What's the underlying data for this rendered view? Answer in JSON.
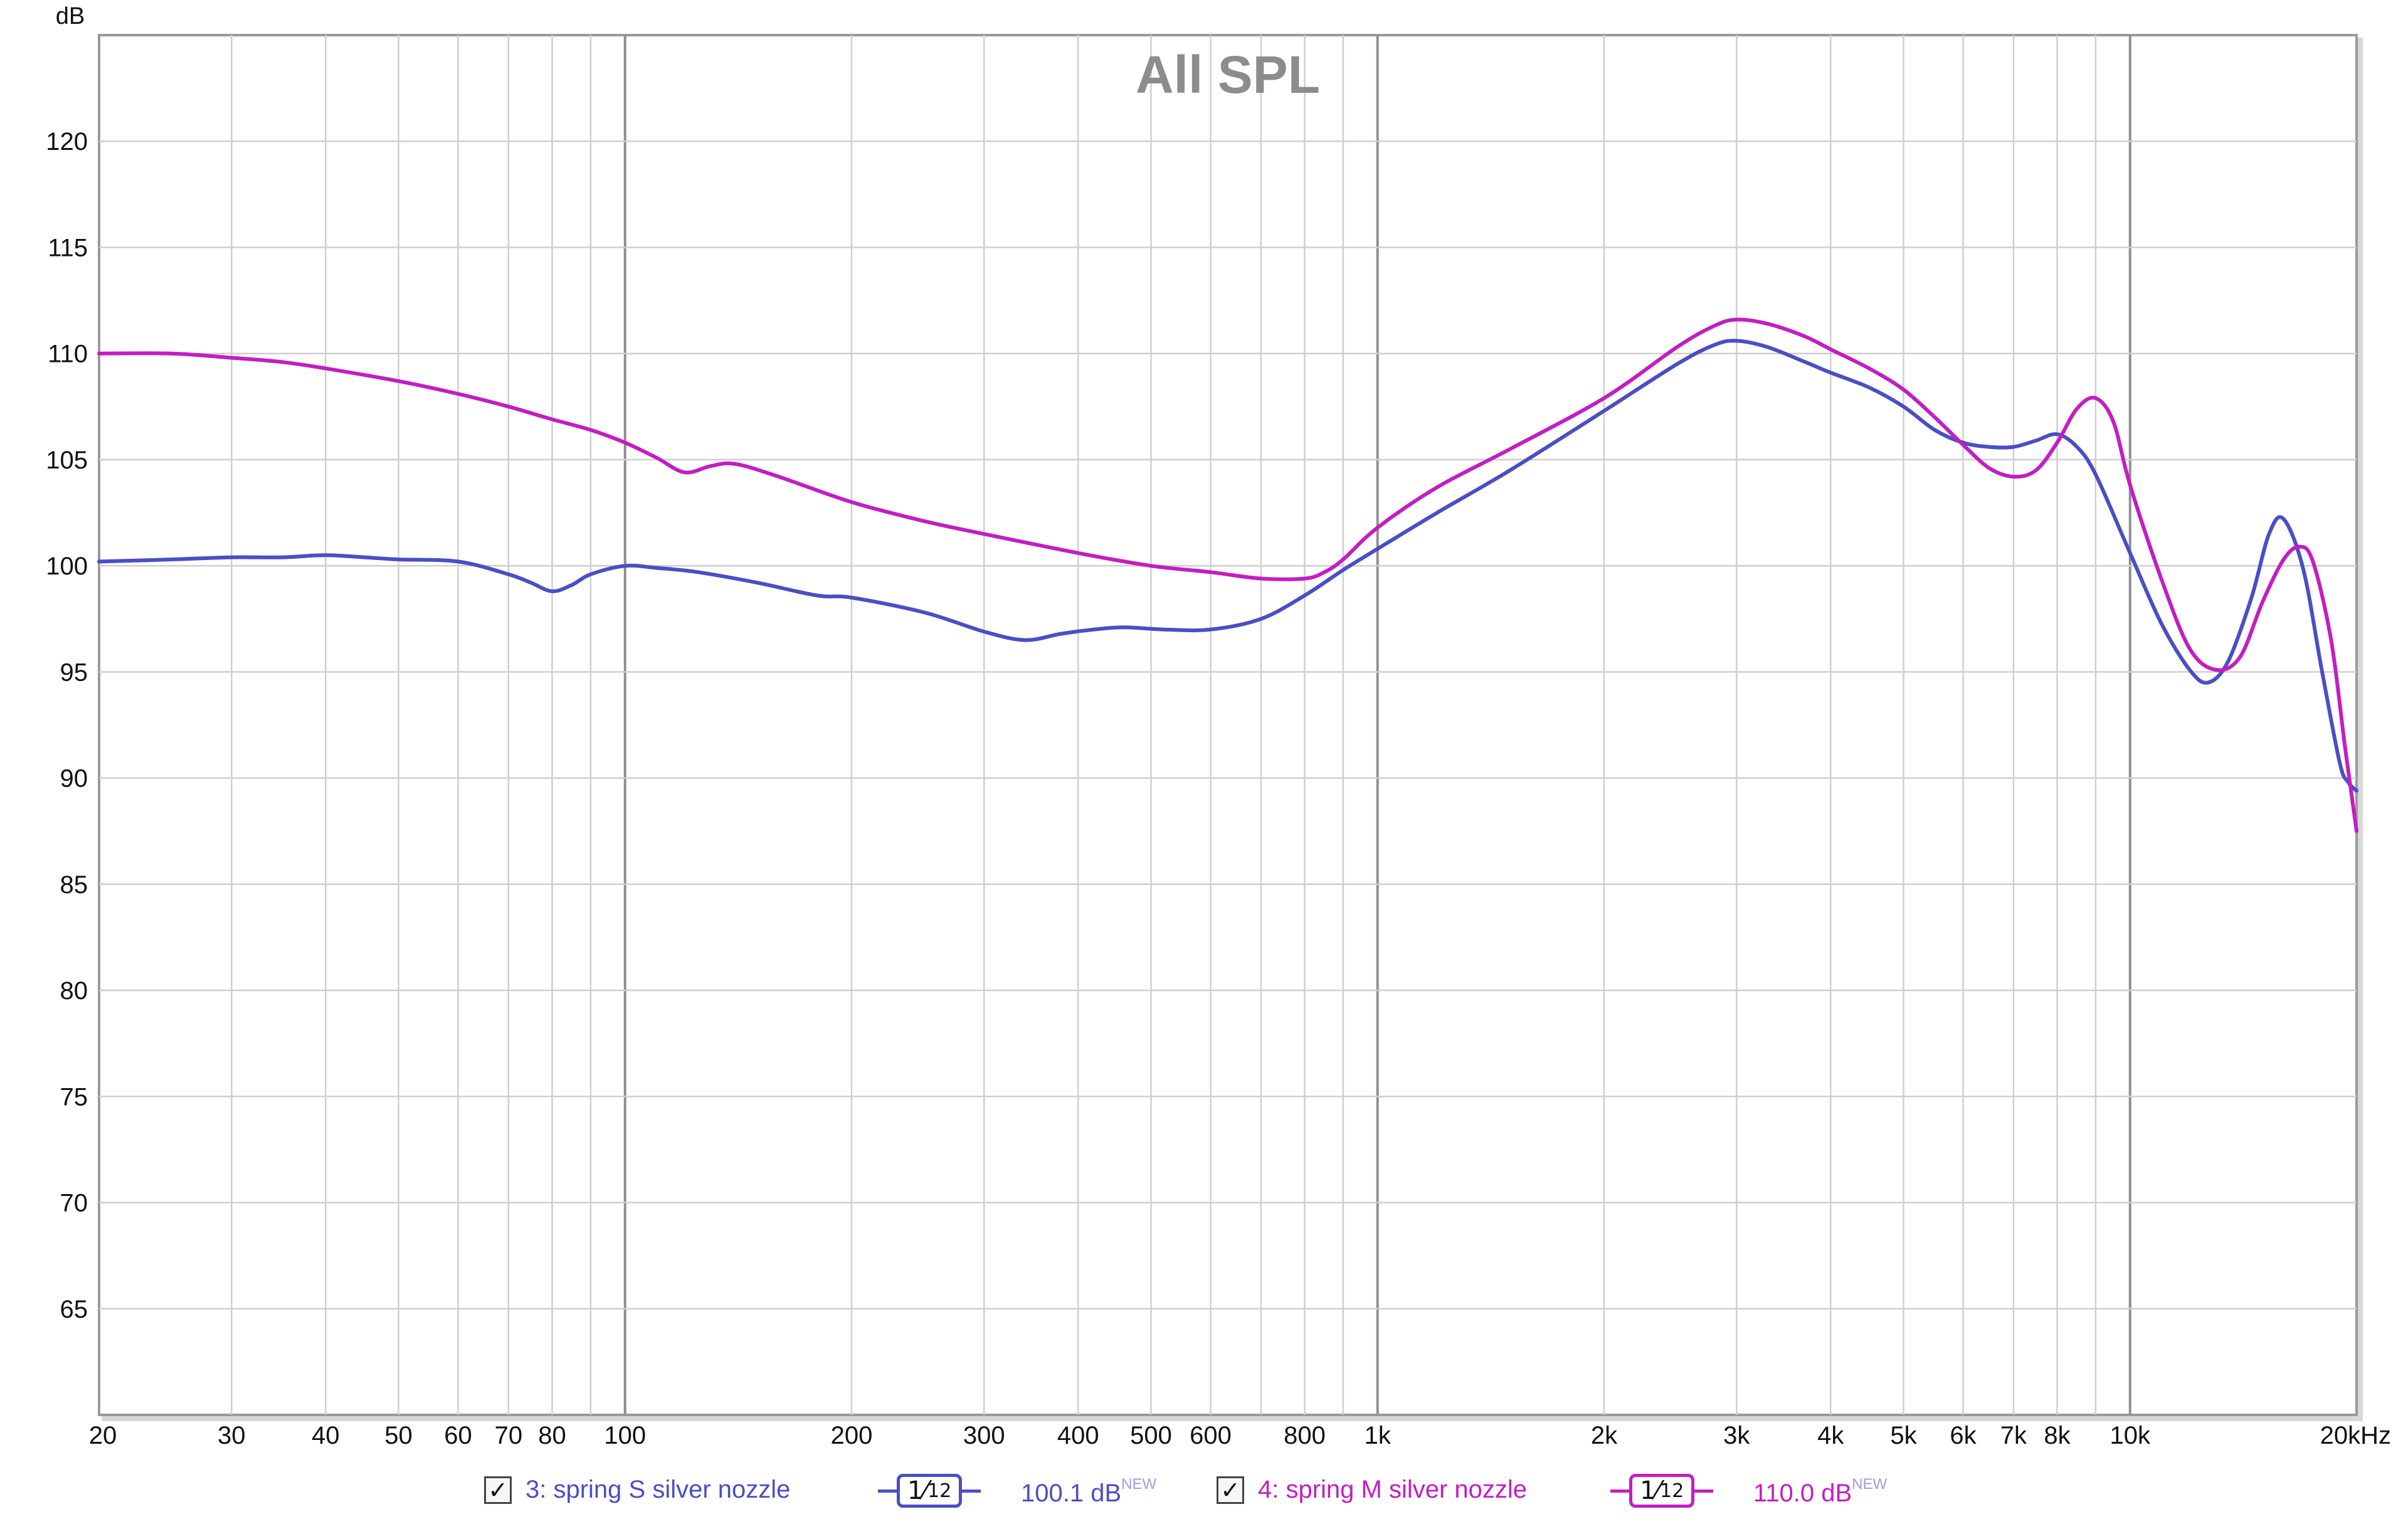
{
  "colors": {
    "series_a": "#4b4ec3",
    "series_b": "#c21ec2",
    "grid": "#cfcfcf",
    "grid_major": "#8f8f8f",
    "title": "#8c8c8c",
    "text": "#111111"
  },
  "chart_data": {
    "type": "line",
    "title": "All SPL",
    "ylabel": "dB",
    "xscale": "log",
    "xlim": [
      20,
      20000
    ],
    "ylim": [
      60,
      125
    ],
    "grid": true,
    "legend_position": "bottom",
    "y_ticks": [
      "65",
      "70",
      "75",
      "80",
      "85",
      "90",
      "95",
      "100",
      "105",
      "110",
      "115",
      "120"
    ],
    "x_ticks": [
      {
        "value": 20,
        "label": "20"
      },
      {
        "value": 30,
        "label": "30"
      },
      {
        "value": 40,
        "label": "40"
      },
      {
        "value": 50,
        "label": "50"
      },
      {
        "value": 60,
        "label": "60"
      },
      {
        "value": 70,
        "label": "70"
      },
      {
        "value": 80,
        "label": "80"
      },
      {
        "value": 100,
        "label": "100"
      },
      {
        "value": 200,
        "label": "200"
      },
      {
        "value": 300,
        "label": "300"
      },
      {
        "value": 400,
        "label": "400"
      },
      {
        "value": 500,
        "label": "500"
      },
      {
        "value": 600,
        "label": "600"
      },
      {
        "value": 800,
        "label": "800"
      },
      {
        "value": 1000,
        "label": "1k"
      },
      {
        "value": 2000,
        "label": "2k"
      },
      {
        "value": 3000,
        "label": "3k"
      },
      {
        "value": 4000,
        "label": "4k"
      },
      {
        "value": 5000,
        "label": "5k"
      },
      {
        "value": 6000,
        "label": "6k"
      },
      {
        "value": 7000,
        "label": "7k"
      },
      {
        "value": 8000,
        "label": "8k"
      },
      {
        "value": 10000,
        "label": "10k"
      },
      {
        "value": 20000,
        "label": "20kHz"
      }
    ],
    "series": [
      {
        "name": "3: spring S silver nozzle",
        "color": "#4b4ec3",
        "points": [
          [
            20,
            100.2
          ],
          [
            25,
            100.3
          ],
          [
            30,
            100.4
          ],
          [
            35,
            100.4
          ],
          [
            40,
            100.5
          ],
          [
            45,
            100.4
          ],
          [
            50,
            100.3
          ],
          [
            60,
            100.2
          ],
          [
            70,
            99.6
          ],
          [
            75,
            99.2
          ],
          [
            80,
            98.8
          ],
          [
            85,
            99.1
          ],
          [
            90,
            99.6
          ],
          [
            100,
            100.0
          ],
          [
            110,
            99.9
          ],
          [
            125,
            99.7
          ],
          [
            150,
            99.2
          ],
          [
            180,
            98.6
          ],
          [
            200,
            98.5
          ],
          [
            250,
            97.8
          ],
          [
            300,
            96.9
          ],
          [
            340,
            96.5
          ],
          [
            380,
            96.8
          ],
          [
            420,
            97.0
          ],
          [
            460,
            97.1
          ],
          [
            520,
            97.0
          ],
          [
            600,
            97.0
          ],
          [
            700,
            97.5
          ],
          [
            800,
            98.6
          ],
          [
            900,
            99.8
          ],
          [
            1000,
            100.8
          ],
          [
            1200,
            102.5
          ],
          [
            1500,
            104.5
          ],
          [
            2000,
            107.3
          ],
          [
            2500,
            109.5
          ],
          [
            2800,
            110.4
          ],
          [
            3000,
            110.6
          ],
          [
            3300,
            110.3
          ],
          [
            3700,
            109.6
          ],
          [
            4000,
            109.1
          ],
          [
            4500,
            108.4
          ],
          [
            5000,
            107.5
          ],
          [
            5500,
            106.4
          ],
          [
            6000,
            105.8
          ],
          [
            6500,
            105.6
          ],
          [
            7000,
            105.6
          ],
          [
            7500,
            105.9
          ],
          [
            8000,
            106.2
          ],
          [
            8500,
            105.6
          ],
          [
            9000,
            104.3
          ],
          [
            10000,
            100.6
          ],
          [
            11000,
            97.3
          ],
          [
            12000,
            95.1
          ],
          [
            12700,
            94.5
          ],
          [
            13500,
            95.5
          ],
          [
            14500,
            98.5
          ],
          [
            15300,
            101.5
          ],
          [
            16000,
            102.2
          ],
          [
            17000,
            99.8
          ],
          [
            18000,
            95.0
          ],
          [
            19000,
            90.7
          ],
          [
            19500,
            89.8
          ],
          [
            20000,
            89.4
          ]
        ]
      },
      {
        "name": "4: spring M silver nozzle",
        "color": "#c21ec2",
        "points": [
          [
            20,
            110.0
          ],
          [
            25,
            110.0
          ],
          [
            30,
            109.8
          ],
          [
            35,
            109.6
          ],
          [
            40,
            109.3
          ],
          [
            50,
            108.7
          ],
          [
            60,
            108.1
          ],
          [
            70,
            107.5
          ],
          [
            80,
            106.9
          ],
          [
            90,
            106.4
          ],
          [
            100,
            105.8
          ],
          [
            110,
            105.1
          ],
          [
            120,
            104.4
          ],
          [
            130,
            104.7
          ],
          [
            140,
            104.8
          ],
          [
            160,
            104.2
          ],
          [
            200,
            103.0
          ],
          [
            250,
            102.1
          ],
          [
            300,
            101.5
          ],
          [
            400,
            100.6
          ],
          [
            500,
            100.0
          ],
          [
            600,
            99.7
          ],
          [
            700,
            99.4
          ],
          [
            800,
            99.4
          ],
          [
            850,
            99.7
          ],
          [
            900,
            100.3
          ],
          [
            1000,
            101.8
          ],
          [
            1200,
            103.7
          ],
          [
            1500,
            105.5
          ],
          [
            2000,
            107.9
          ],
          [
            2500,
            110.3
          ],
          [
            2800,
            111.3
          ],
          [
            3000,
            111.6
          ],
          [
            3300,
            111.4
          ],
          [
            3700,
            110.8
          ],
          [
            4000,
            110.2
          ],
          [
            4500,
            109.3
          ],
          [
            5000,
            108.3
          ],
          [
            5500,
            107.0
          ],
          [
            6000,
            105.7
          ],
          [
            6500,
            104.6
          ],
          [
            7000,
            104.2
          ],
          [
            7500,
            104.5
          ],
          [
            8000,
            105.8
          ],
          [
            8500,
            107.4
          ],
          [
            9000,
            107.9
          ],
          [
            9500,
            106.8
          ],
          [
            10000,
            103.8
          ],
          [
            11000,
            99.4
          ],
          [
            12000,
            96.1
          ],
          [
            13000,
            95.1
          ],
          [
            14000,
            95.7
          ],
          [
            15000,
            98.3
          ],
          [
            16000,
            100.3
          ],
          [
            16800,
            100.9
          ],
          [
            17500,
            100.2
          ],
          [
            18500,
            96.5
          ],
          [
            19300,
            91.5
          ],
          [
            20000,
            87.5
          ]
        ]
      }
    ]
  },
  "legend": [
    {
      "checkbox": "✓",
      "name": "3: spring S silver nozzle",
      "smoothing_num": "1",
      "smoothing_den": "12",
      "level": "100.1 dB",
      "badge": "NEW"
    },
    {
      "checkbox": "✓",
      "name": "4: spring M silver nozzle",
      "smoothing_num": "1",
      "smoothing_den": "12",
      "level": "110.0 dB",
      "badge": "NEW"
    }
  ]
}
